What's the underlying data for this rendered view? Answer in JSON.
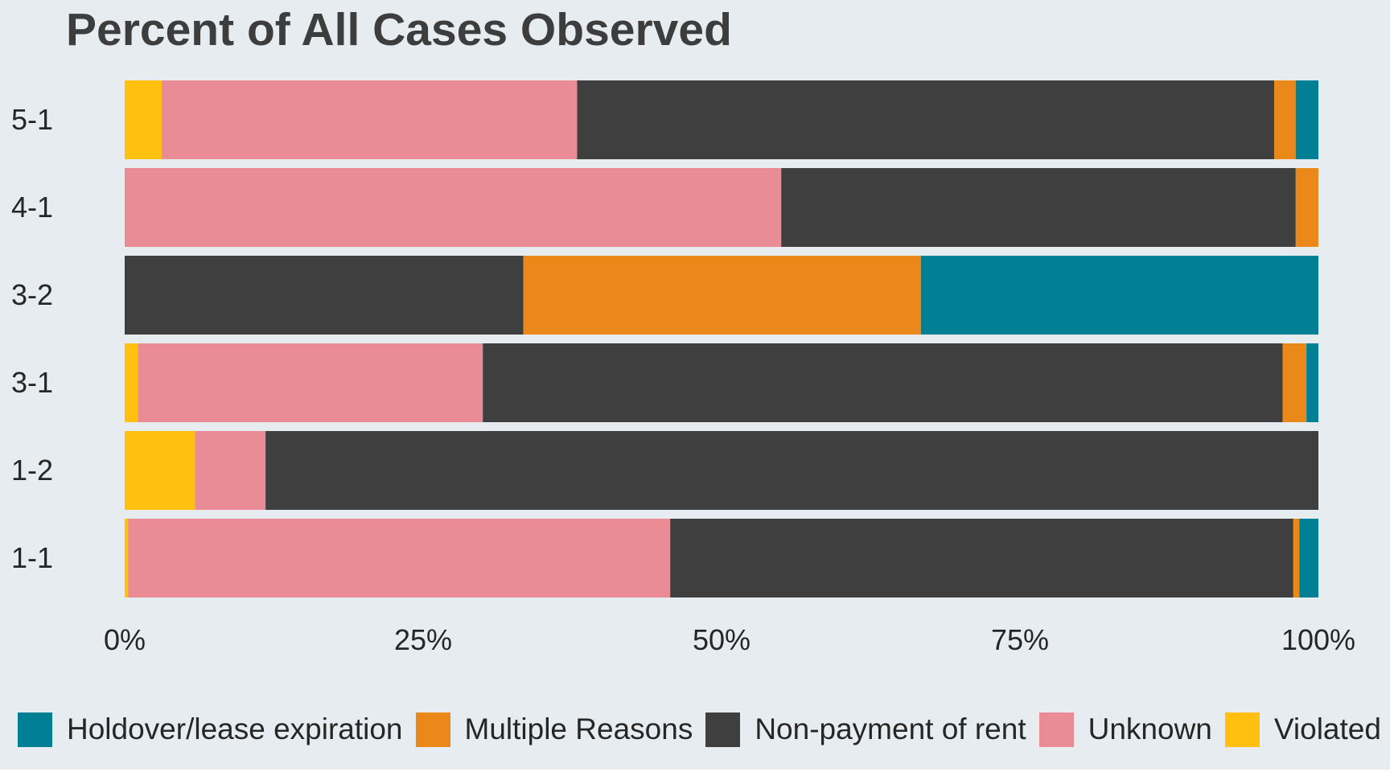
{
  "chart_data": {
    "type": "bar",
    "orientation": "horizontal",
    "stacked": "percent",
    "title": "Percent of All Cases Observed",
    "xlabel": "",
    "ylabel": "",
    "xlim": [
      0,
      100
    ],
    "x_ticks": [
      "0%",
      "25%",
      "50%",
      "75%",
      "100%"
    ],
    "categories": [
      "5-1",
      "4-1",
      "3-2",
      "3-1",
      "1-2",
      "1-1"
    ],
    "series": [
      {
        "name": "Violated lease",
        "color": "#ffc00f",
        "values": [
          3.1,
          0,
          0,
          1.1,
          5.9,
          0.3
        ]
      },
      {
        "name": "Unknown",
        "color": "#e98c96",
        "values": [
          34.8,
          55.0,
          0,
          28.9,
          5.9,
          45.4
        ]
      },
      {
        "name": "Non-payment of rent",
        "color": "#3f3f3f",
        "values": [
          58.4,
          43.1,
          33.4,
          67.0,
          88.2,
          52.2
        ]
      },
      {
        "name": "Multiple Reasons",
        "color": "#ea8819",
        "values": [
          1.8,
          1.9,
          33.3,
          2.0,
          0,
          0.5
        ]
      },
      {
        "name": "Holdover/lease expiration",
        "color": "#007f95",
        "values": [
          1.9,
          0,
          33.3,
          1.0,
          0,
          1.6
        ]
      }
    ],
    "legend": {
      "position": "bottom",
      "order": [
        "Holdover/lease expiration",
        "Multiple Reasons",
        "Non-payment of rent",
        "Unknown",
        "Violated le"
      ]
    },
    "grid": false
  }
}
